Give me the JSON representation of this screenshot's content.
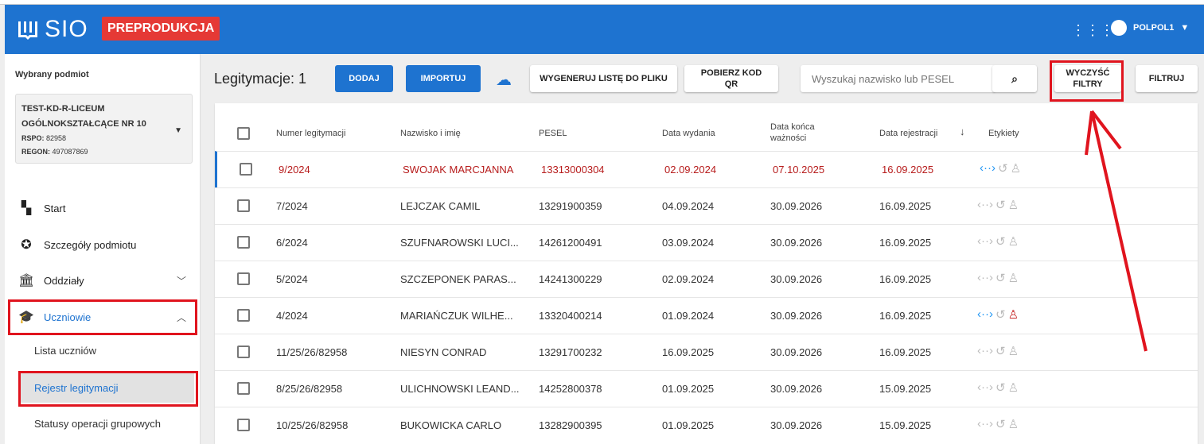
{
  "app": {
    "name": "SIO",
    "env_badge": "PREPRODUKCJA",
    "user": "POLPOL1",
    "colors": {
      "brand": "#1e73d0",
      "badge": "#e53935",
      "error": "#b71c1c",
      "annotation": "#e0141e"
    }
  },
  "sidebar": {
    "selected_label": "Wybrany podmiot",
    "entity": {
      "name_line1": "TEST-KD-R-LICEUM",
      "name_line2": "OGÓLNOKSZTAŁCĄCE NR 10",
      "rspo_label": "RSPO:",
      "rspo": "82958",
      "regon_label": "REGON:",
      "regon": "497087869"
    },
    "items": [
      {
        "label": "Start",
        "icon": "dashboard-icon"
      },
      {
        "label": "Szczegóły podmiotu",
        "icon": "star-badge-icon"
      },
      {
        "label": "Oddziały",
        "icon": "bank-icon"
      },
      {
        "label": "Uczniowie",
        "icon": "school-icon"
      }
    ],
    "subitems": [
      {
        "label": "Lista uczniów"
      },
      {
        "label": "Rejestr legitymacji"
      },
      {
        "label": "Statusy operacji grupowych"
      }
    ]
  },
  "toolbar": {
    "title": "Legitymacje: 1",
    "add": "DODAJ",
    "import": "IMPORTUJ",
    "generate": "WYGENERUJ LISTĘ DO PLIKU",
    "qr": "POBIERZ KOD QR",
    "search_placeholder": "Wyszukaj nazwisko lub PESEL",
    "clear": "WYCZYŚĆ FILTRY",
    "filter": "FILTRUJ"
  },
  "table": {
    "headers": [
      "Numer legitymacji",
      "Nazwisko i imię",
      "PESEL",
      "Data wydania",
      "Data końca ważności",
      "Data rejestracji",
      "Etykiety"
    ],
    "rows": [
      [
        "9/2024",
        "SWOJAK MARCJANNA",
        "13313000304",
        "02.09.2024",
        "07.10.2025",
        "16.09.2025"
      ],
      [
        "7/2024",
        "LEJCZAK CAMIL",
        "13291900359",
        "04.09.2024",
        "30.09.2026",
        "16.09.2025"
      ],
      [
        "6/2024",
        "SZUFNAROWSKI LUCI...",
        "14261200491",
        "03.09.2024",
        "30.09.2026",
        "16.09.2025"
      ],
      [
        "5/2024",
        "SZCZEPONEK PARAS...",
        "14241300229",
        "02.09.2024",
        "30.09.2026",
        "16.09.2025"
      ],
      [
        "4/2024",
        "MARIAŃCZUK WILHE...",
        "13320400214",
        "01.09.2024",
        "30.09.2026",
        "16.09.2025"
      ],
      [
        "11/25/26/82958",
        "NIESYN CONRAD",
        "13291700232",
        "16.09.2025",
        "30.09.2026",
        "16.09.2025"
      ],
      [
        "8/25/26/82958",
        "ULICHNOWSKI LEAND...",
        "14252800378",
        "01.09.2025",
        "30.09.2026",
        "15.09.2025"
      ],
      [
        "10/25/26/82958",
        "BUKOWICKA CARLO",
        "13282900395",
        "01.09.2025",
        "30.09.2026",
        "15.09.2025"
      ]
    ]
  }
}
